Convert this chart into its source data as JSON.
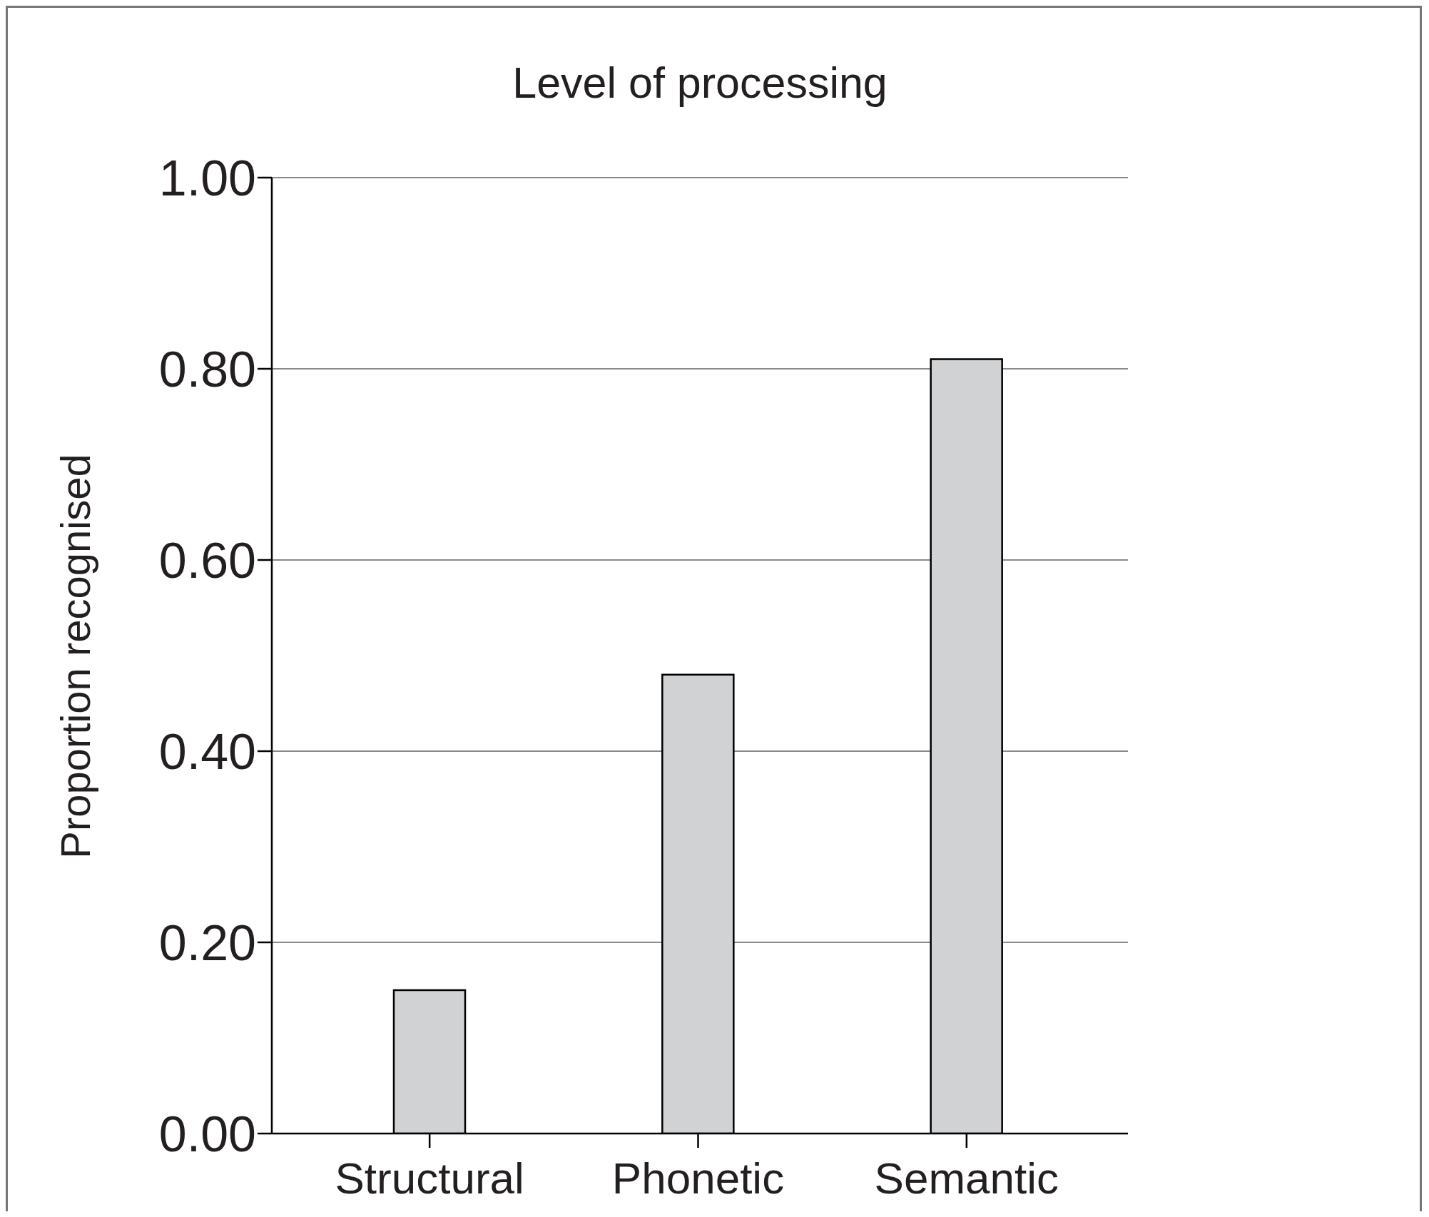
{
  "chart_data": {
    "type": "bar",
    "title": "Level of processing",
    "ylabel": "Proportion recognised",
    "categories": [
      "Structural",
      "Phonetic",
      "Semantic"
    ],
    "values": [
      0.15,
      0.48,
      0.81
    ],
    "color": "#d1d2d4",
    "ylim": [
      0,
      1
    ],
    "yticks": [
      {
        "value": 0,
        "label": "0.00"
      },
      {
        "value": 0.2,
        "label": "0.20"
      },
      {
        "value": 0.4,
        "label": "0.40"
      },
      {
        "value": 0.6,
        "label": "0.60"
      },
      {
        "value": 0.8,
        "label": "0.80"
      },
      {
        "value": 1,
        "label": "1.00"
      }
    ],
    "grid": "y",
    "legend": false
  }
}
